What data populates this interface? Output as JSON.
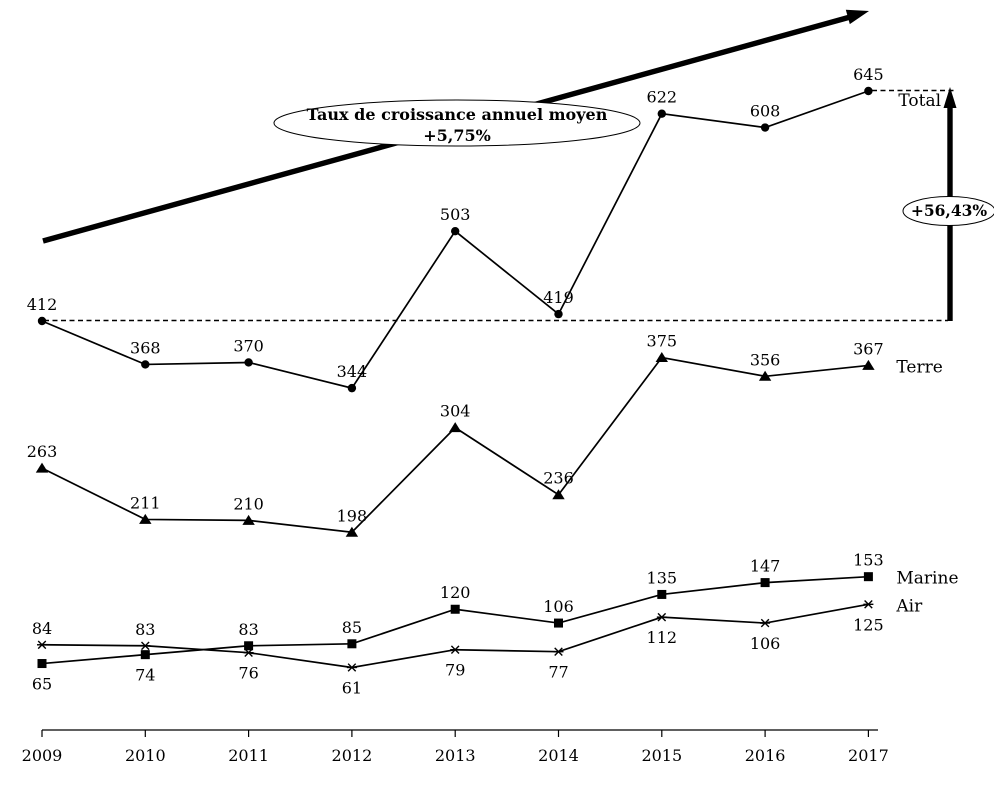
{
  "chart_data": {
    "type": "line",
    "title": "",
    "xlabel": "",
    "ylabel": "",
    "x": [
      "2009",
      "2010",
      "2011",
      "2012",
      "2013",
      "2014",
      "2015",
      "2016",
      "2017"
    ],
    "series": [
      {
        "name": "Total",
        "marker": "circle",
        "values": [
          412,
          368,
          370,
          344,
          503,
          419,
          622,
          608,
          645
        ],
        "label_positions": [
          "above",
          "above",
          "above",
          "above",
          "above",
          "above",
          "above",
          "above",
          "above"
        ]
      },
      {
        "name": "Terre",
        "marker": "triangle",
        "values": [
          263,
          211,
          210,
          198,
          304,
          236,
          375,
          356,
          367
        ],
        "label_positions": [
          "above",
          "above",
          "above",
          "above",
          "above",
          "above",
          "above",
          "above",
          "above"
        ]
      },
      {
        "name": "Marine",
        "marker": "square",
        "values": [
          65,
          74,
          83,
          85,
          120,
          106,
          135,
          147,
          153
        ],
        "label_positions": [
          "below",
          "below",
          "above",
          "above",
          "above",
          "above",
          "above",
          "above",
          "above"
        ]
      },
      {
        "name": "Air",
        "marker": "star",
        "values": [
          84,
          83,
          76,
          61,
          79,
          77,
          112,
          106,
          125
        ],
        "label_positions": [
          "above",
          "above",
          "below",
          "below",
          "below",
          "below",
          "below",
          "below",
          "below"
        ]
      }
    ],
    "ylim": [
      0,
      700
    ],
    "grid": false,
    "legend_position": "right-inline",
    "annotations": {
      "growth_label_line1": "Taux de croissance annuel moyen",
      "growth_label_line2": "+5,75%",
      "increase_label": "+56,43%",
      "baseline_dashed_from_value": 412,
      "ink_color": "#000000",
      "background_color": "#ffffff"
    }
  }
}
